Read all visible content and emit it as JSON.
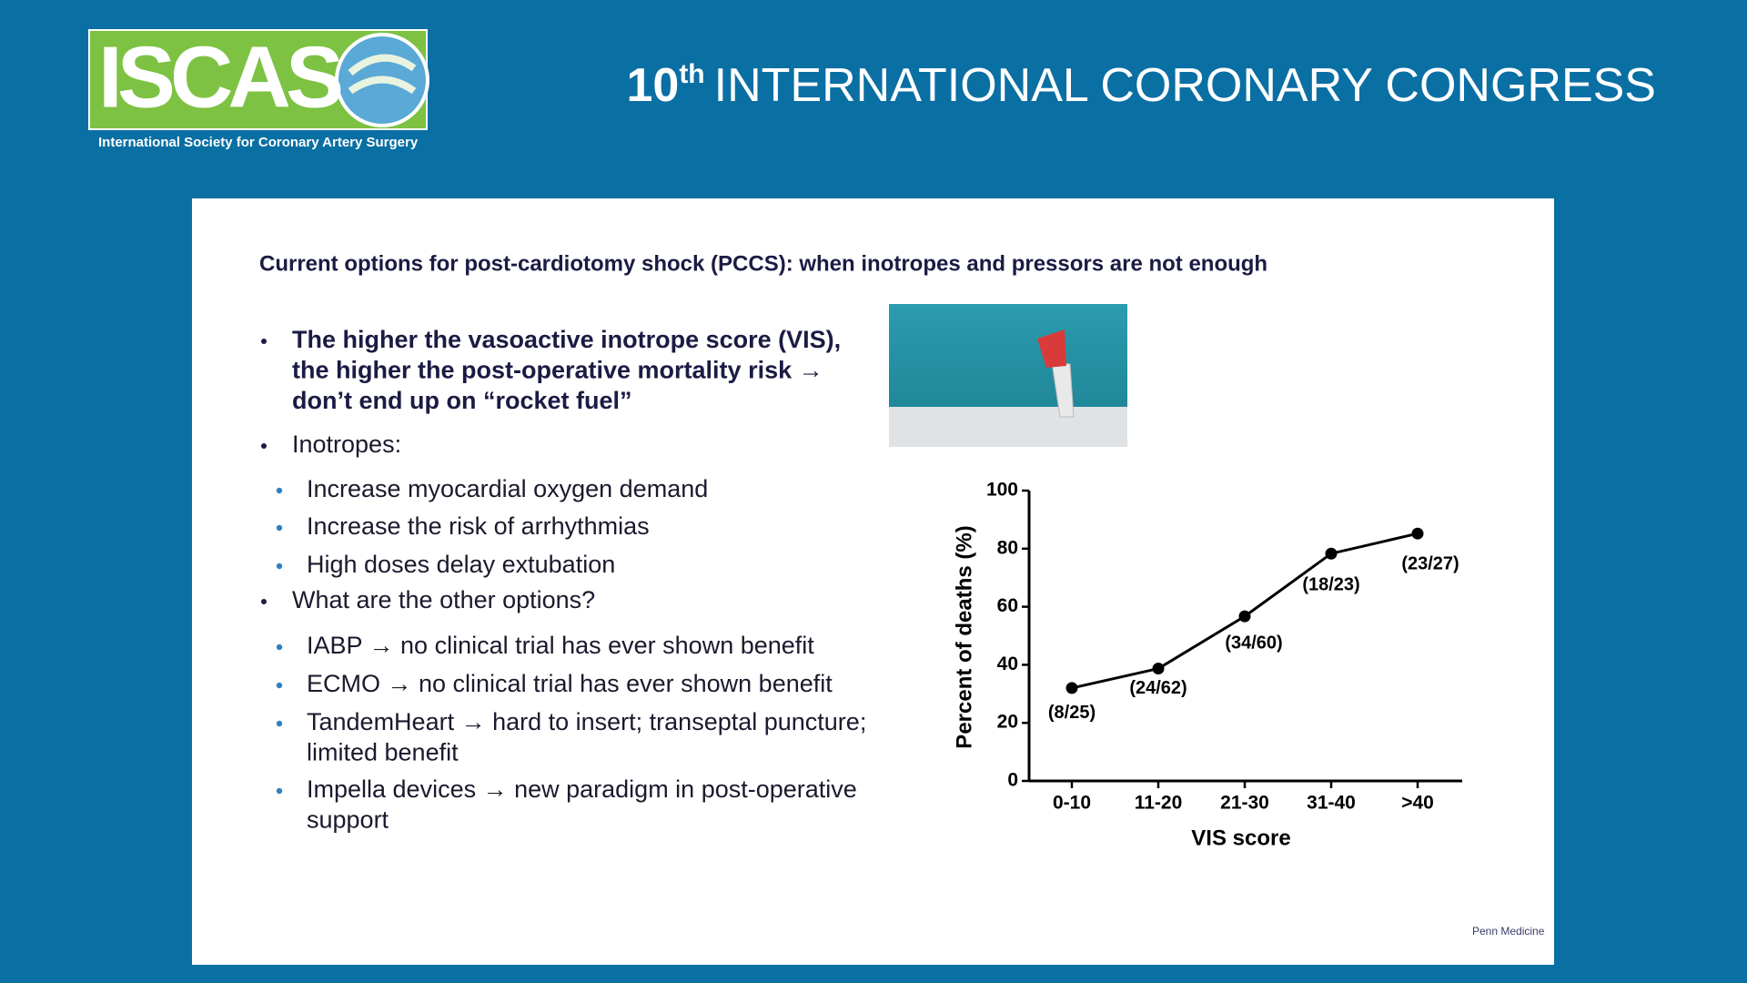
{
  "header": {
    "logo_text": "ISCAS",
    "society": "International Society for Coronary Artery Surgery",
    "ordinal": "10",
    "ordinal_suffix": "th",
    "congress_title": "INTERNATIONAL CORONARY CONGRESS"
  },
  "slide": {
    "title": "Current options for post-cardiotomy shock (PCCS): when inotropes and pressors are not enough",
    "bullets": [
      {
        "level": 1,
        "bold": true,
        "lines": [
          "The higher the vasoactive inotrope score (VIS),",
          "the higher the post-operative mortality risk →",
          "don’t end up on “rocket fuel”"
        ]
      },
      {
        "level": 1,
        "bold": false,
        "lines": [
          "Inotropes:"
        ]
      },
      {
        "level": 2,
        "bold": false,
        "lines": [
          "Increase myocardial oxygen demand"
        ]
      },
      {
        "level": 2,
        "bold": false,
        "lines": [
          "Increase the risk of arrhythmias"
        ]
      },
      {
        "level": 2,
        "bold": false,
        "lines": [
          "High doses delay extubation"
        ]
      },
      {
        "level": 1,
        "bold": false,
        "lines": [
          "What are the other options?"
        ]
      },
      {
        "level": 2,
        "bold": false,
        "lines": [
          "IABP → no clinical trial has ever shown benefit"
        ]
      },
      {
        "level": 2,
        "bold": false,
        "lines": [
          "ECMO → no clinical trial has ever shown benefit"
        ]
      },
      {
        "level": 2,
        "bold": false,
        "lines": [
          "TandemHeart → hard to insert; transeptal puncture;",
          "limited benefit"
        ]
      },
      {
        "level": 2,
        "bold": false,
        "lines": [
          "Impella devices → new paradigm in post-operative",
          "support"
        ]
      }
    ],
    "footer": "Penn Medicine"
  },
  "chart_data": {
    "type": "line",
    "x_label": "VIS score",
    "y_label": "Percent of deaths (%)",
    "categories": [
      "0-10",
      "11-20",
      "21-30",
      "31-40",
      ">40"
    ],
    "values": [
      32,
      38.7,
      56.7,
      78.3,
      85.2
    ],
    "value_labels": [
      "(8/25)",
      "(24/62)",
      "(34/60)",
      "(18/23)",
      "(23/27)"
    ],
    "color": "#000000",
    "ylim": [
      0,
      100
    ],
    "yticks": [
      0,
      20,
      40,
      60,
      80,
      100
    ]
  }
}
